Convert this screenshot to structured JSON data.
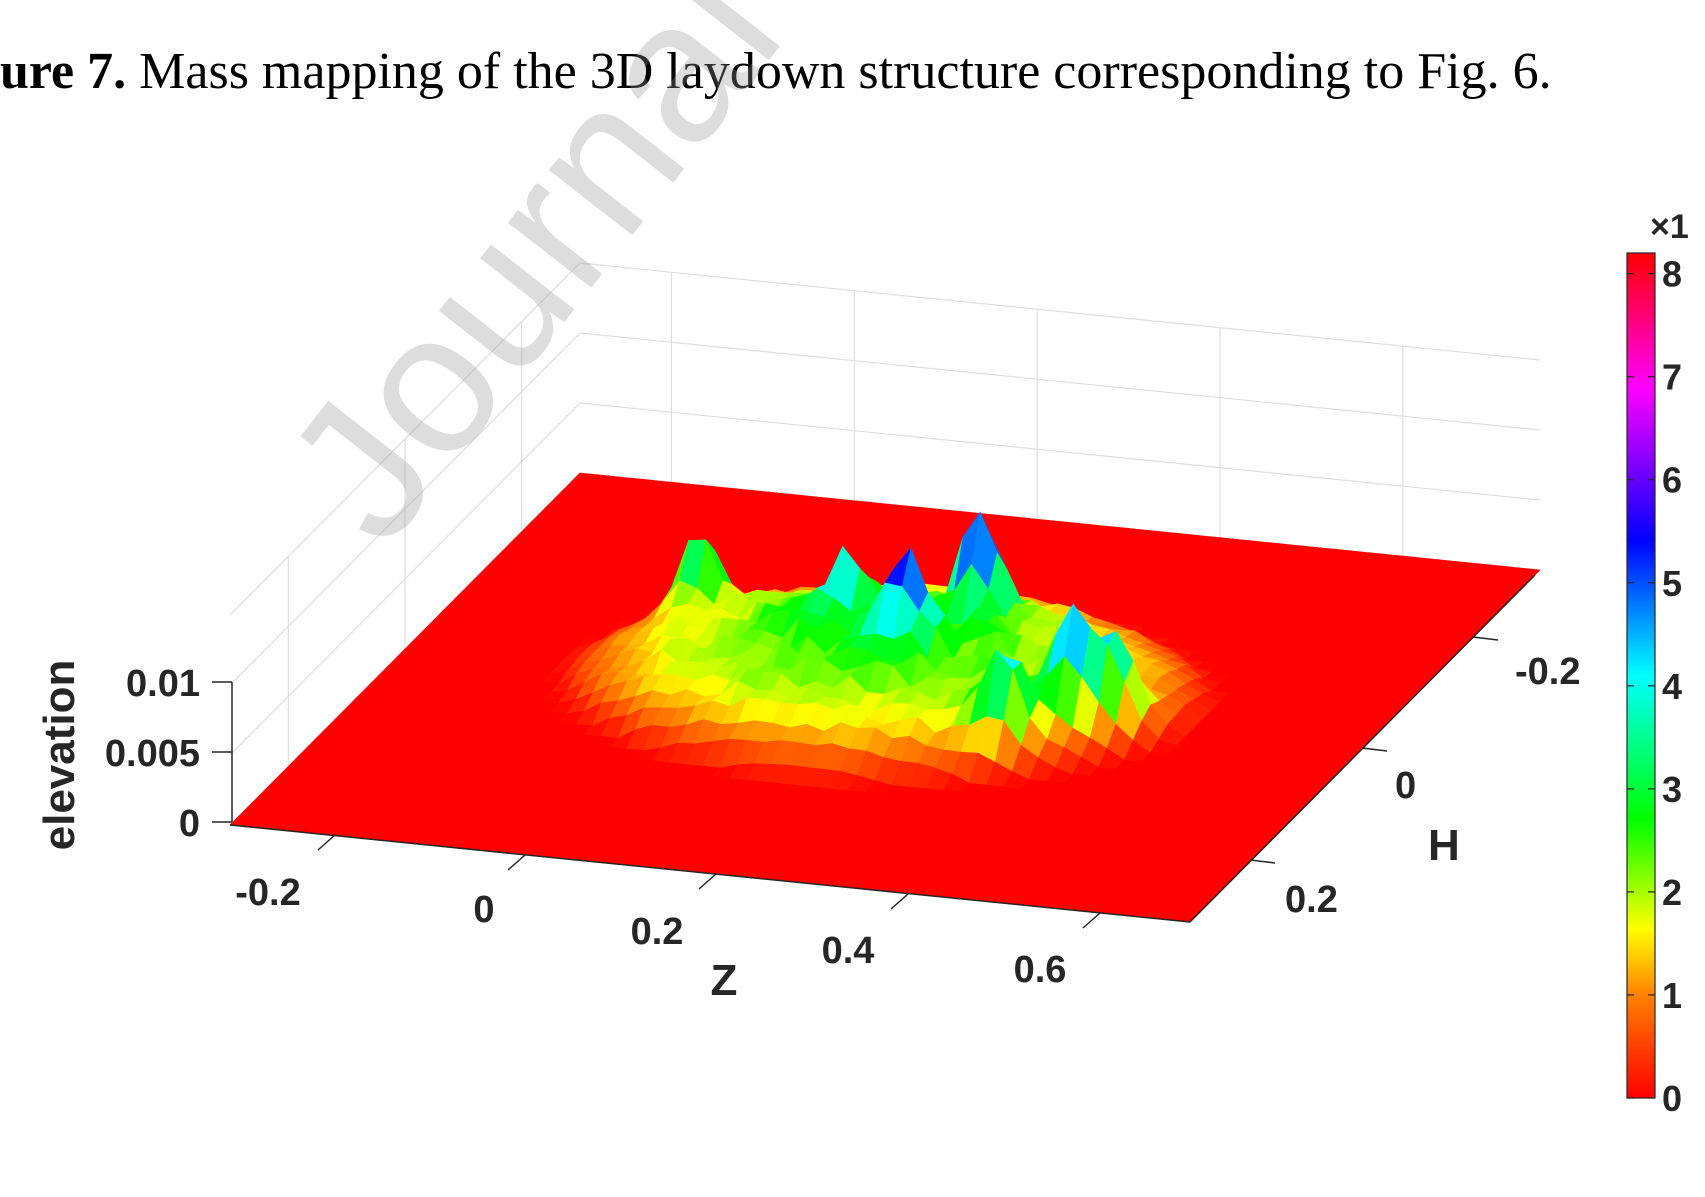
{
  "caption": {
    "label": "ure 7.",
    "text": "Mass mapping of the 3D laydown structure corresponding to Fig. 6."
  },
  "watermark": "Journal Pre-pro",
  "chart_data": {
    "type": "surface",
    "title": "",
    "xlabel": "Z",
    "ylabel": "H",
    "zlabel": "elevation",
    "x_ticks": [
      "-0.2",
      "0",
      "0.2",
      "0.4",
      "0.6"
    ],
    "y_ticks": [
      "-0.2",
      "0",
      "0.2"
    ],
    "z_ticks": [
      "0",
      "0.005",
      "0.01"
    ],
    "xlim": [
      -0.3,
      0.75
    ],
    "ylim": [
      -0.3,
      0.3
    ],
    "zlim": [
      0,
      0.015
    ],
    "grid": true,
    "colormap": "reversed hsv (red at 0, magenta at max)",
    "colorbar": {
      "ticks": [
        "0",
        "1",
        "2",
        "3",
        "4",
        "5",
        "6",
        "7",
        "8"
      ],
      "exponent_label": "×1",
      "range": [
        0,
        8.2
      ]
    },
    "peaks": [
      {
        "z": -0.03,
        "h": -0.08,
        "elevation": 0.0085
      },
      {
        "z": 0.28,
        "h": -0.08,
        "elevation": 0.0105
      },
      {
        "z": 0.24,
        "h": -0.01,
        "elevation": 0.0088
      },
      {
        "z": 0.15,
        "h": -0.05,
        "elevation": 0.0075
      },
      {
        "z": 0.45,
        "h": 0.03,
        "elevation": 0.0095
      },
      {
        "z": 0.4,
        "h": 0.07,
        "elevation": 0.0085
      },
      {
        "z": 0.49,
        "h": 0.02,
        "elevation": 0.008
      }
    ]
  }
}
